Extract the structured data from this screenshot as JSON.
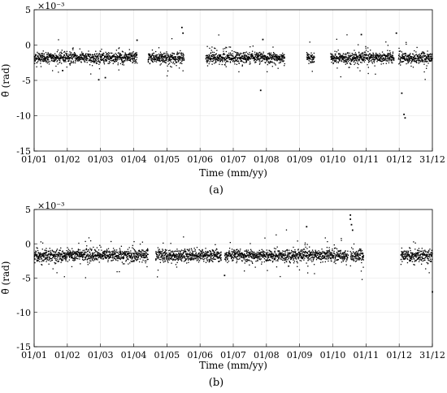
{
  "figure": {
    "captions": [
      "(a)",
      "(b)"
    ]
  },
  "chart_data": [
    {
      "type": "scatter",
      "panel": "a",
      "caption": "(a)",
      "xlabel": "Time (mm/yy)",
      "ylabel": "θ̄ (rad)",
      "y_multiplier": "×10⁻³",
      "ylim": [
        -15,
        5
      ],
      "yticks": [
        5,
        0,
        -5,
        -10,
        -15
      ],
      "xtick_labels": [
        "01/01",
        "01/02",
        "01/03",
        "01/04",
        "01/05",
        "01/06",
        "01/07",
        "01/08",
        "01/09",
        "01/10",
        "01/11",
        "01/12",
        "31/12"
      ],
      "grid": true,
      "series": [
        {
          "marker_color": "#000000",
          "baseline": -1.8,
          "band_spread": 0.7,
          "data_segments_days": [
            [
              1,
              95
            ],
            [
              105,
              138
            ],
            [
              158,
              230
            ],
            [
              250,
              257
            ],
            [
              272,
              330
            ],
            [
              334,
              365
            ]
          ],
          "notable_points": [
            {
              "x_day": 95,
              "y": 0.7
            },
            {
              "x_day": 136,
              "y": 2.5
            },
            {
              "x_day": 137,
              "y": 1.7
            },
            {
              "x_day": 208,
              "y": -6.4
            },
            {
              "x_day": 210,
              "y": 0.8
            },
            {
              "x_day": 300,
              "y": 1.5
            },
            {
              "x_day": 332,
              "y": 1.7
            },
            {
              "x_day": 337,
              "y": -6.8
            },
            {
              "x_day": 339,
              "y": -9.8
            },
            {
              "x_day": 340,
              "y": -10.3
            },
            {
              "x_day": 27,
              "y": -3.6
            },
            {
              "x_day": 60,
              "y": -4.9
            },
            {
              "x_day": 66,
              "y": -4.6
            }
          ]
        }
      ]
    },
    {
      "type": "scatter",
      "panel": "b",
      "caption": "(b)",
      "xlabel": "Time (mm/yy)",
      "ylabel": "θ̄ (rad)",
      "y_multiplier": "×10⁻³",
      "ylim": [
        -15,
        5
      ],
      "yticks": [
        5,
        0,
        -5,
        -10,
        -15
      ],
      "xtick_labels": [
        "01/01",
        "01/02",
        "01/03",
        "01/04",
        "01/05",
        "01/06",
        "01/07",
        "01/08",
        "01/09",
        "01/10",
        "01/11",
        "01/12",
        "31/12"
      ],
      "grid": true,
      "series": [
        {
          "marker_color": "#000000",
          "baseline": -1.7,
          "band_spread": 0.8,
          "data_segments_days": [
            [
              1,
              105
            ],
            [
              112,
              172
            ],
            [
              175,
              288
            ],
            [
              290,
              302
            ],
            [
              336,
              365
            ]
          ],
          "notable_points": [
            {
              "x_day": 250,
              "y": 2.5
            },
            {
              "x_day": 290,
              "y": 4.2
            },
            {
              "x_day": 290,
              "y": 3.6
            },
            {
              "x_day": 291,
              "y": 2.8
            },
            {
              "x_day": 292,
              "y": 2.0
            },
            {
              "x_day": 175,
              "y": -4.6
            },
            {
              "x_day": 365,
              "y": -7.0
            }
          ]
        }
      ]
    }
  ]
}
